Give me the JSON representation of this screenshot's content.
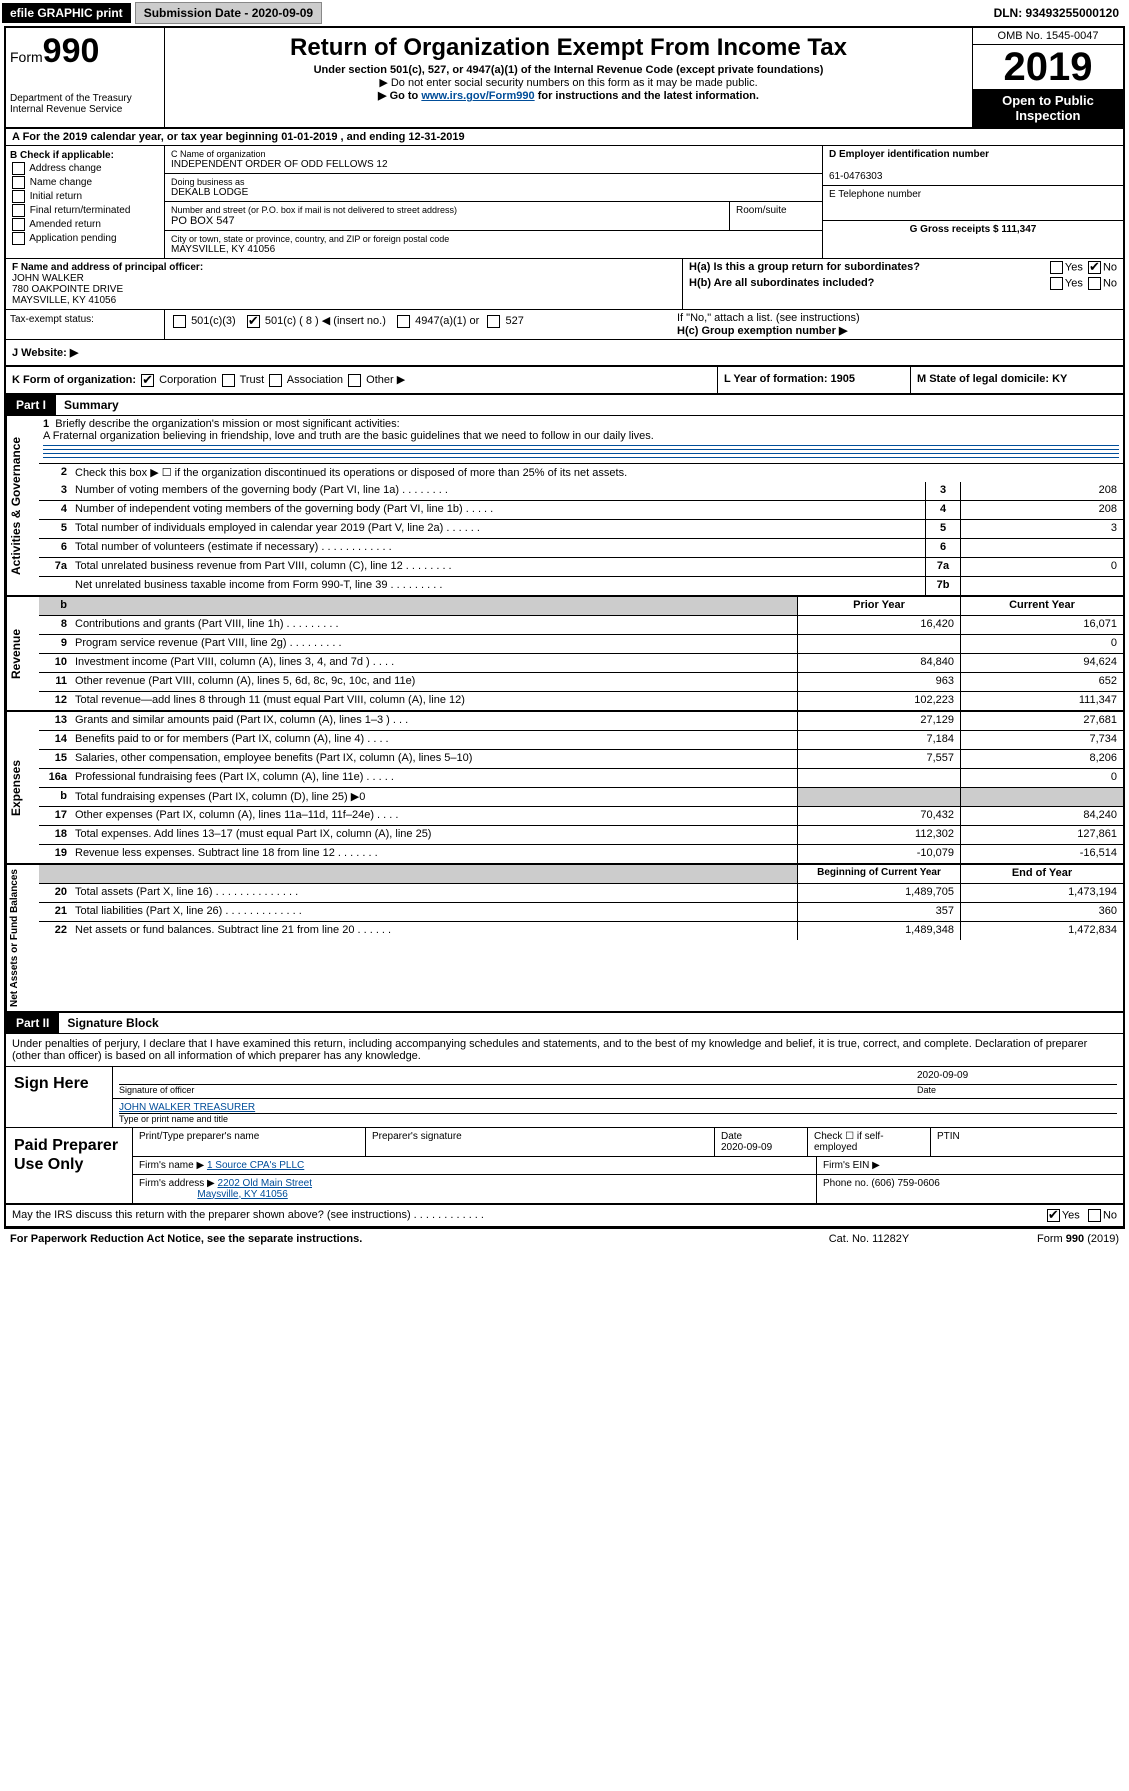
{
  "topbar": {
    "efile": "efile GRAPHIC print",
    "submission": "Submission Date - 2020-09-09",
    "dln": "DLN: 93493255000120"
  },
  "header": {
    "form_prefix": "Form",
    "form_number": "990",
    "dept": "Department of the Treasury",
    "irs": "Internal Revenue Service",
    "title": "Return of Organization Exempt From Income Tax",
    "sub1": "Under section 501(c), 527, or 4947(a)(1) of the Internal Revenue Code (except private foundations)",
    "sub2": "▶ Do not enter social security numbers on this form as it may be made public.",
    "sub3_pre": "▶ Go to ",
    "sub3_link": "www.irs.gov/Form990",
    "sub3_post": " for instructions and the latest information.",
    "omb": "OMB No. 1545-0047",
    "year": "2019",
    "open": "Open to Public Inspection"
  },
  "rowA": "A   For the 2019 calendar year, or tax year beginning 01-01-2019    , and ending 12-31-2019",
  "colB": {
    "title": "B Check if applicable:",
    "opts": [
      "Address change",
      "Name change",
      "Initial return",
      "Final return/terminated",
      "Amended return",
      "Application pending"
    ]
  },
  "colC": {
    "name_label": "C Name of organization",
    "name": "INDEPENDENT ORDER OF ODD FELLOWS 12",
    "dba_label": "Doing business as",
    "dba": "DEKALB LODGE",
    "addr_label": "Number and street (or P.O. box if mail is not delivered to street address)",
    "addr": "PO BOX 547",
    "room_label": "Room/suite",
    "city_label": "City or town, state or province, country, and ZIP or foreign postal code",
    "city": "MAYSVILLE, KY  41056"
  },
  "colD": {
    "ein_label": "D Employer identification number",
    "ein": "61-0476303",
    "phone_label": "E Telephone number",
    "gross_label": "G Gross receipts $ 111,347"
  },
  "colF": {
    "label": "F  Name and address of principal officer:",
    "name": "JOHN WALKER",
    "addr1": "780 OAKPOINTE DRIVE",
    "addr2": "MAYSVILLE, KY  41056"
  },
  "colH": {
    "ha": "H(a)  Is this a group return for subordinates?",
    "hb": "H(b)  Are all subordinates included?",
    "hb_note": "If \"No,\" attach a list. (see instructions)",
    "hc": "H(c)  Group exemption number ▶",
    "yes": "Yes",
    "no": "No"
  },
  "taxExempt": {
    "label": "Tax-exempt status:",
    "opt1": "501(c)(3)",
    "opt2": "501(c) ( 8 ) ◀ (insert no.)",
    "opt3": "4947(a)(1) or",
    "opt4": "527"
  },
  "websiteJ": "J    Website: ▶",
  "rowK": {
    "k": "K Form of organization:",
    "k_opts": [
      "Corporation",
      "Trust",
      "Association",
      "Other ▶"
    ],
    "l": "L Year of formation: 1905",
    "m": "M State of legal domicile: KY"
  },
  "part1": {
    "tab": "Part I",
    "title": "Summary",
    "vert_gov": "Activities & Governance",
    "vert_rev": "Revenue",
    "vert_exp": "Expenses",
    "vert_net": "Net Assets or Fund Balances",
    "line1_label": "Briefly describe the organization's mission or most significant activities:",
    "line1_text": "A Fraternal organization believing in friendship, love and truth are the basic guidelines that we need to follow in our daily lives.",
    "line2": "Check this box ▶ ☐  if the organization discontinued its operations or disposed of more than 25% of its net assets.",
    "lines_simple": [
      {
        "n": "3",
        "d": "Number of voting members of the governing body (Part VI, line 1a)   .    .    .    .    .    .    .    .",
        "b": "3",
        "v": "208"
      },
      {
        "n": "4",
        "d": "Number of independent voting members of the governing body (Part VI, line 1b)    .    .    .    .    .",
        "b": "4",
        "v": "208"
      },
      {
        "n": "5",
        "d": "Total number of individuals employed in calendar year 2019 (Part V, line 2a)    .    .    .    .    .    .",
        "b": "5",
        "v": "3"
      },
      {
        "n": "6",
        "d": "Total number of volunteers (estimate if necessary)    .    .    .    .    .    .    .    .    .    .    .    .",
        "b": "6",
        "v": ""
      },
      {
        "n": "7a",
        "d": "Total unrelated business revenue from Part VIII, column (C), line 12    .    .    .    .    .    .    .    .",
        "b": "7a",
        "v": "0"
      },
      {
        "n": "",
        "d": "Net unrelated business taxable income from Form 990-T, line 39    .    .    .    .    .    .    .    .    .",
        "b": "7b",
        "v": ""
      }
    ],
    "col_prior": "Prior Year",
    "col_curr": "Current Year",
    "lines_two": [
      {
        "n": "8",
        "d": "Contributions and grants (Part VIII, line 1h)    .    .    .    .    .    .    .    .    .",
        "p": "16,420",
        "c": "16,071"
      },
      {
        "n": "9",
        "d": "Program service revenue (Part VIII, line 2g)    .    .    .    .    .    .    .    .    .",
        "p": "",
        "c": "0"
      },
      {
        "n": "10",
        "d": "Investment income (Part VIII, column (A), lines 3, 4, and 7d )    .    .    .    .",
        "p": "84,840",
        "c": "94,624"
      },
      {
        "n": "11",
        "d": "Other revenue (Part VIII, column (A), lines 5, 6d, 8c, 9c, 10c, and 11e)",
        "p": "963",
        "c": "652"
      },
      {
        "n": "12",
        "d": "Total revenue—add lines 8 through 11 (must equal Part VIII, column (A), line 12)",
        "p": "102,223",
        "c": "111,347"
      }
    ],
    "lines_exp": [
      {
        "n": "13",
        "d": "Grants and similar amounts paid (Part IX, column (A), lines 1–3 )    .    .    .",
        "p": "27,129",
        "c": "27,681"
      },
      {
        "n": "14",
        "d": "Benefits paid to or for members (Part IX, column (A), line 4)    .    .    .    .",
        "p": "7,184",
        "c": "7,734"
      },
      {
        "n": "15",
        "d": "Salaries, other compensation, employee benefits (Part IX, column (A), lines 5–10)",
        "p": "7,557",
        "c": "8,206"
      },
      {
        "n": "16a",
        "d": "Professional fundraising fees (Part IX, column (A), line 11e)    .    .    .    .    .",
        "p": "",
        "c": "0"
      },
      {
        "n": "b",
        "d": "Total fundraising expenses (Part IX, column (D), line 25) ▶0",
        "p": "GRAY",
        "c": "GRAY"
      },
      {
        "n": "17",
        "d": "Other expenses (Part IX, column (A), lines 11a–11d, 11f–24e)    .    .    .    .",
        "p": "70,432",
        "c": "84,240"
      },
      {
        "n": "18",
        "d": "Total expenses. Add lines 13–17 (must equal Part IX, column (A), line 25)",
        "p": "112,302",
        "c": "127,861"
      },
      {
        "n": "19",
        "d": "Revenue less expenses. Subtract line 18 from line 12    .    .    .    .    .    .    .",
        "p": "-10,079",
        "c": "-16,514"
      }
    ],
    "col_begin": "Beginning of Current Year",
    "col_end": "End of Year",
    "lines_net": [
      {
        "n": "20",
        "d": "Total assets (Part X, line 16)    .    .    .    .    .    .    .    .    .    .    .    .    .    .",
        "p": "1,489,705",
        "c": "1,473,194"
      },
      {
        "n": "21",
        "d": "Total liabilities (Part X, line 26)    .    .    .    .    .    .    .    .    .    .    .    .    .",
        "p": "357",
        "c": "360"
      },
      {
        "n": "22",
        "d": "Net assets or fund balances. Subtract line 21 from line 20    .    .    .    .    .    .",
        "p": "1,489,348",
        "c": "1,472,834"
      }
    ]
  },
  "part2": {
    "tab": "Part II",
    "title": "Signature Block",
    "para": "Under penalties of perjury, I declare that I have examined this return, including accompanying schedules and statements, and to the best of my knowledge and belief, it is true, correct, and complete. Declaration of preparer (other than officer) is based on all information of which preparer has any knowledge.",
    "sign_here": "Sign Here",
    "sig_officer": "Signature of officer",
    "sig_date": "2020-09-09",
    "date_label": "Date",
    "officer_name": "JOHN WALKER TREASURER",
    "type_name": "Type or print name and title",
    "paid": "Paid Preparer Use Only",
    "prep_name_label": "Print/Type preparer's name",
    "prep_sig_label": "Preparer's signature",
    "prep_date_label": "Date",
    "prep_date": "2020-09-09",
    "check_self": "Check ☐ if self-employed",
    "ptin": "PTIN",
    "firm_name_label": "Firm's name     ▶",
    "firm_name": "1 Source CPA's PLLC",
    "firm_ein": "Firm's EIN ▶",
    "firm_addr_label": "Firm's address ▶",
    "firm_addr1": "2202 Old Main Street",
    "firm_addr2": "Maysville, KY  41056",
    "firm_phone": "Phone no. (606) 759-0606",
    "discuss": "May the IRS discuss this return with the preparer shown above? (see instructions)    .    .    .    .    .    .    .    .    .    .    .    .",
    "footer_left": "For Paperwork Reduction Act Notice, see the separate instructions.",
    "footer_mid": "Cat. No. 11282Y",
    "footer_right": "Form 990 (2019)"
  }
}
